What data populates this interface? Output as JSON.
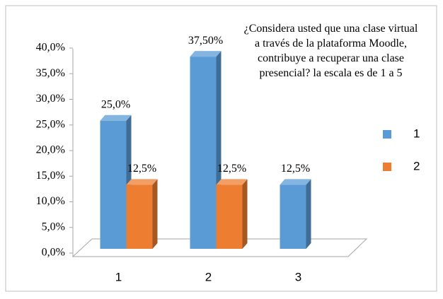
{
  "chart_data": {
    "type": "bar3d",
    "title": "¿Considera usted que una clase virtual a través de la plataforma Moodle, contribuye a recuperar una clase presencial? la escala es de 1 a 5",
    "categories": [
      "1",
      "2",
      "3"
    ],
    "series": [
      {
        "name": "1",
        "color": "#5b9bd5",
        "values": [
          25,
          37.5,
          12.5
        ],
        "value_labels": [
          "25,0%",
          "37,50%",
          "12,5%"
        ]
      },
      {
        "name": "2",
        "color": "#ed7d31",
        "values": [
          12.5,
          12.5,
          null
        ],
        "value_labels": [
          "12,5%",
          "12,5%",
          null
        ]
      }
    ],
    "ylim": [
      0,
      40
    ],
    "yticks": [
      {
        "value": 0,
        "label": "0,0%"
      },
      {
        "value": 5,
        "label": "5,0%"
      },
      {
        "value": 10,
        "label": "10,0%"
      },
      {
        "value": 15,
        "label": "15,0%"
      },
      {
        "value": 20,
        "label": "20,0%"
      },
      {
        "value": 25,
        "label": "25,0%"
      },
      {
        "value": 30,
        "label": "30,0%"
      },
      {
        "value": 35,
        "label": "35,0%"
      },
      {
        "value": 40,
        "label": "40,0%"
      }
    ],
    "legend": "right"
  }
}
